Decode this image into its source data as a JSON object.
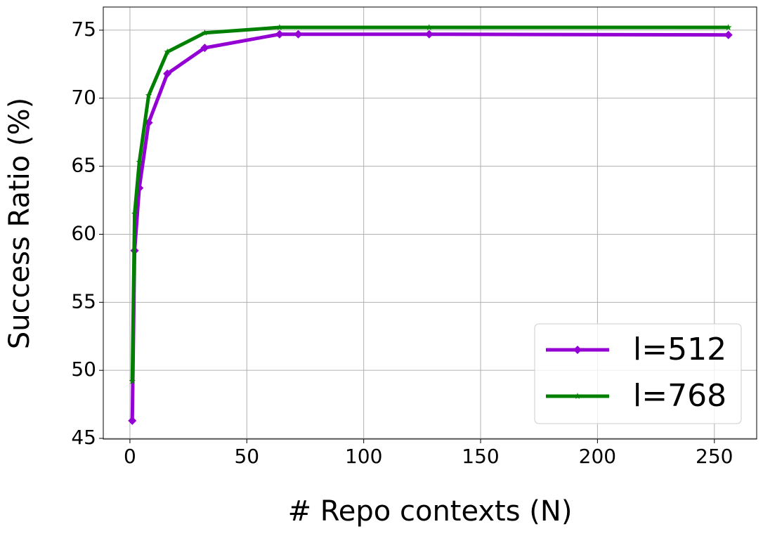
{
  "chart_data": {
    "type": "line",
    "x_label": "# Repo contexts (N)",
    "y_label": "Success Ratio (%)",
    "xlim": [
      -11.4,
      268.1
    ],
    "ylim": [
      44.95,
      76.7
    ],
    "xticks": [
      0,
      50,
      100,
      150,
      200,
      250
    ],
    "yticks": [
      45,
      50,
      55,
      60,
      65,
      70,
      75
    ],
    "grid": true,
    "legend": "lower right",
    "series": [
      {
        "name": "l=512",
        "color": "#9400d3",
        "marker": "diamond",
        "x": [
          1,
          2,
          4,
          8,
          16,
          32,
          64,
          72,
          128,
          256
        ],
        "values": [
          46.3,
          58.8,
          63.4,
          68.2,
          71.8,
          73.7,
          74.7,
          74.7,
          74.7,
          74.65
        ]
      },
      {
        "name": "l=768",
        "color": "#008000",
        "marker": "star",
        "x": [
          1,
          2,
          4,
          8,
          16,
          32,
          64,
          128,
          256
        ],
        "values": [
          49.2,
          61.5,
          65.3,
          70.2,
          73.4,
          74.8,
          75.2,
          75.2,
          75.2
        ]
      }
    ]
  }
}
